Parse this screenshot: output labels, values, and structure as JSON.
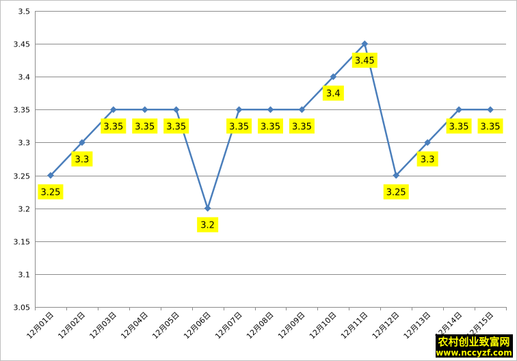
{
  "chart_data": {
    "type": "line",
    "title": "",
    "xlabel": "",
    "ylabel": "",
    "categories": [
      "12月01日",
      "12月02日",
      "12月03日",
      "12月04日",
      "12月05日",
      "12月06日",
      "12月07日",
      "12月08日",
      "12月09日",
      "12月10日",
      "12月11日",
      "12月12日",
      "12月13日",
      "12月14日",
      "12月15日"
    ],
    "series": [
      {
        "values": [
          3.25,
          3.3,
          3.35,
          3.35,
          3.35,
          3.2,
          3.35,
          3.35,
          3.35,
          3.4,
          3.45,
          3.25,
          3.3,
          3.35,
          3.35
        ]
      }
    ],
    "data_labels": [
      "3.25",
      "3.3",
      "3.35",
      "3.35",
      "3.35",
      "3.2",
      "3.35",
      "3.35",
      "3.35",
      "3.4",
      "3.45",
      "3.25",
      "3.3",
      "3.35",
      "3.35"
    ],
    "ylim": [
      3.05,
      3.5
    ],
    "yticks": [
      "3.05",
      "3.1",
      "3.15",
      "3.2",
      "3.25",
      "3.3",
      "3.35",
      "3.4",
      "3.45",
      "3.5"
    ],
    "grid": true,
    "legend": "none",
    "colors": {
      "line": "#4a7ebb",
      "label_bg": "#ffff00"
    }
  },
  "watermark": {
    "line1": "农村创业致富网",
    "line2": "www.nccyzf.com"
  }
}
